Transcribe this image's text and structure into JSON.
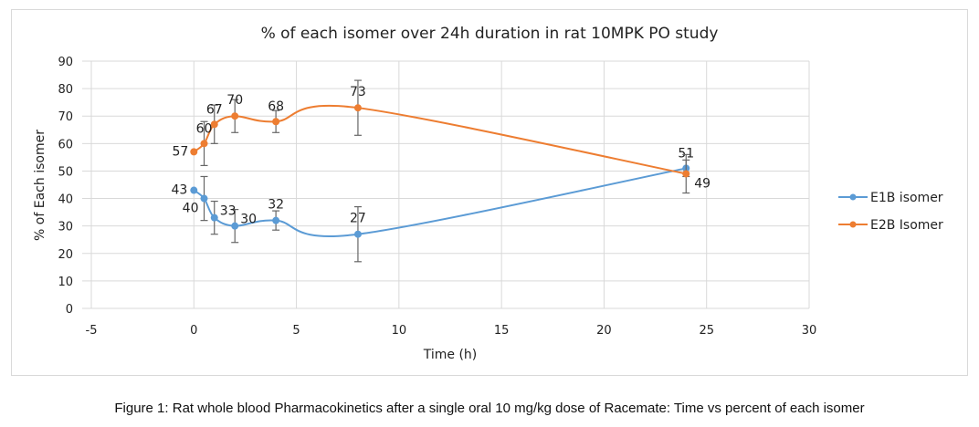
{
  "chart_data": {
    "type": "line",
    "title": "% of each isomer over 24h duration in rat 10MPK PO study",
    "xlabel": "Time (h)",
    "ylabel": "% of Each isomer",
    "xlim": [
      -5,
      30
    ],
    "ylim": [
      0,
      90
    ],
    "xticks": [
      -5,
      0,
      5,
      10,
      15,
      20,
      25,
      30
    ],
    "yticks": [
      0,
      10,
      20,
      30,
      40,
      50,
      60,
      70,
      80,
      90
    ],
    "grid": true,
    "legend": "right",
    "x": [
      0,
      0.5,
      1,
      2,
      4,
      8,
      24
    ],
    "series": [
      {
        "name": "E1B isomer",
        "color": "#5b9bd5",
        "values": [
          43,
          40,
          33,
          30,
          32,
          27,
          51
        ],
        "error": [
          0,
          8,
          6,
          6,
          3.5,
          10,
          3
        ]
      },
      {
        "name": "E2B Isomer",
        "color": "#ed7d31",
        "values": [
          57,
          60,
          67,
          70,
          68,
          73,
          49
        ],
        "error": [
          0,
          8,
          7,
          6,
          4,
          10,
          7
        ]
      }
    ]
  },
  "caption": "Figure 1: Rat whole blood Pharmacokinetics after a single oral 10 mg/kg dose of Racemate: Time vs percent of each isomer"
}
